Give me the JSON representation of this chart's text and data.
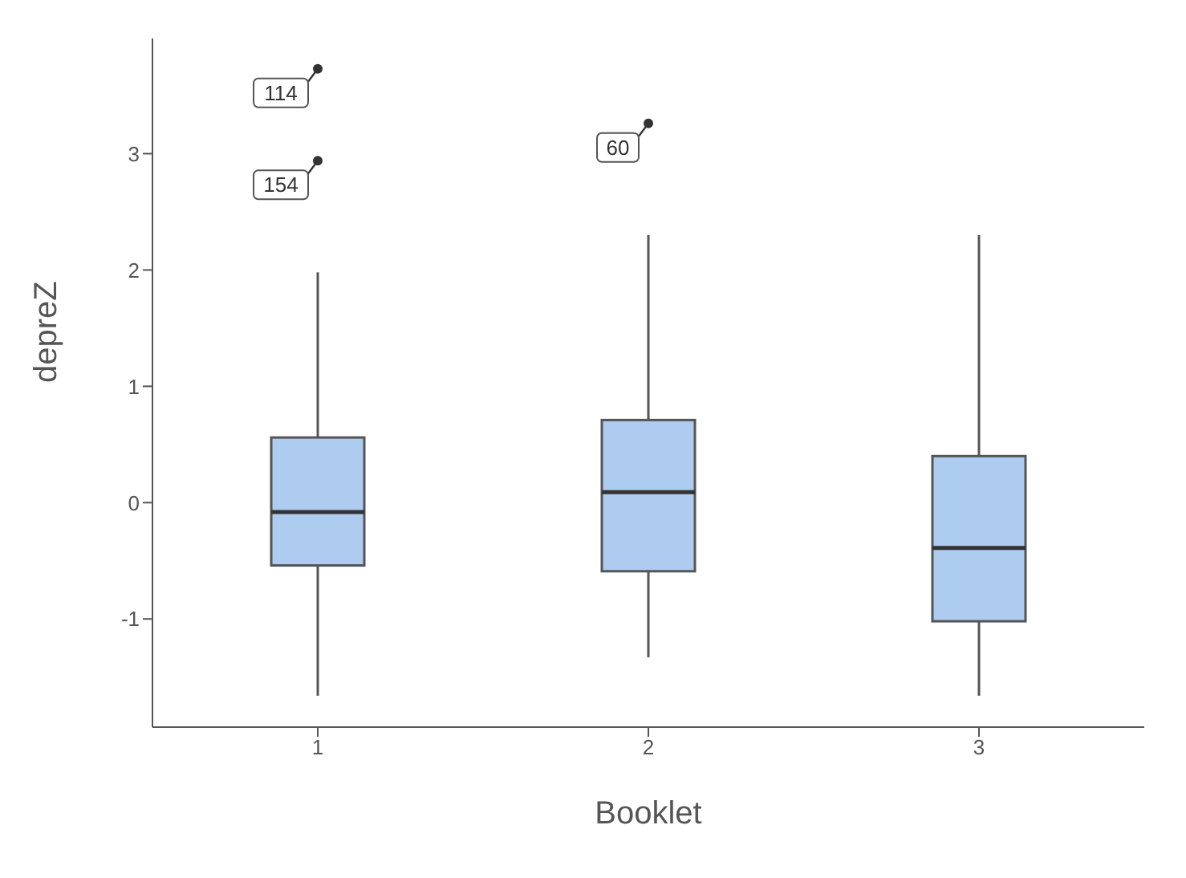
{
  "chart_data": {
    "type": "box",
    "xlabel": "Booklet",
    "ylabel": "depreZ",
    "categories": [
      "1",
      "2",
      "3"
    ],
    "color": "#aecbf0",
    "boxes": [
      {
        "low": -1.66,
        "q1": -0.54,
        "median": -0.08,
        "q3": 0.56,
        "high": 1.98,
        "outliers": [
          3.73,
          2.94
        ]
      },
      {
        "low": -1.33,
        "q1": -0.59,
        "median": 0.09,
        "q3": 0.71,
        "high": 2.3,
        "outliers": [
          3.26
        ]
      },
      {
        "low": -1.66,
        "q1": -1.02,
        "median": -0.39,
        "q3": 0.4,
        "high": 2.3
      }
    ],
    "ylim": [
      -1.93,
      3.99
    ],
    "yticks": [
      -1,
      0,
      1,
      2,
      3
    ],
    "grid": false,
    "legend": false,
    "annotations": [
      "114",
      "154",
      "60"
    ]
  }
}
